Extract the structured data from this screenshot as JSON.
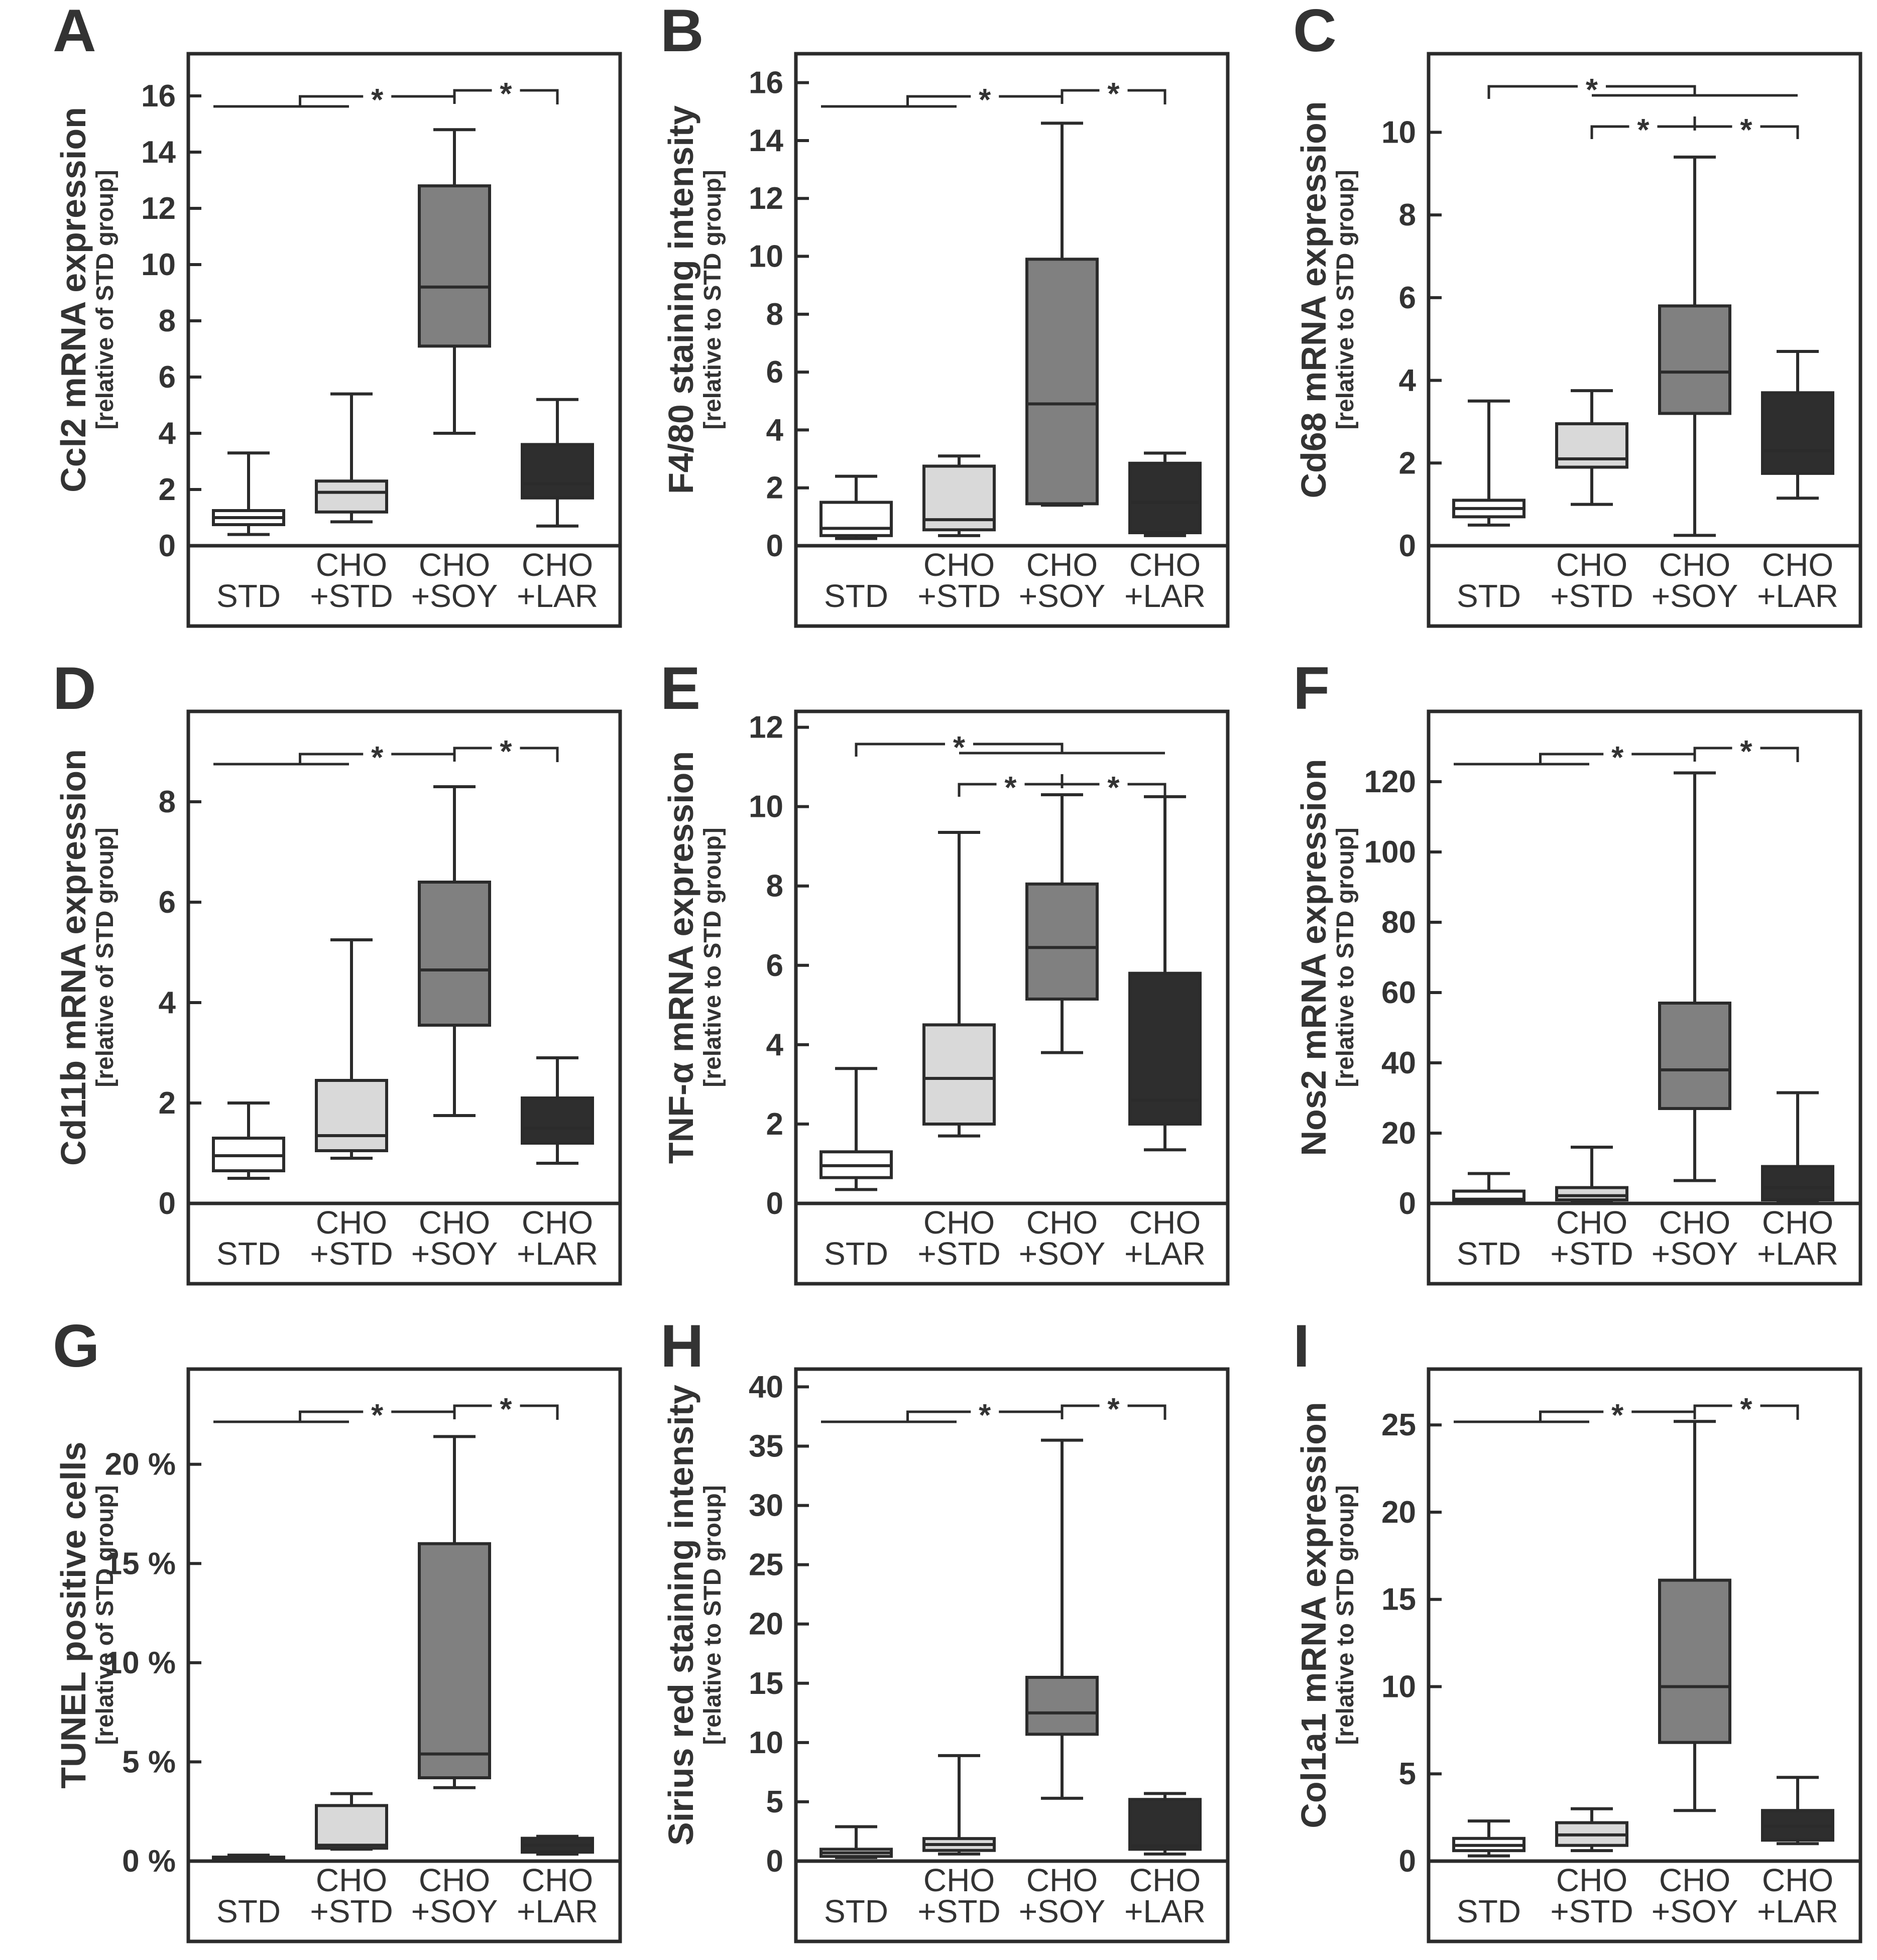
{
  "figure": {
    "colors": {
      "STD": "#ffffff",
      "CHO+STD": "#d9d9d9",
      "CHO+SOY": "#808080",
      "CHO+LAR": "#2e2e2e",
      "stroke": "#2b2b2b"
    }
  },
  "chart_data": [
    {
      "letter": "A",
      "type": "box",
      "ylabel": "Ccl2 mRNA expression",
      "ylabel_sub": "[relative of STD group]",
      "ylim": [
        0,
        17.5
      ],
      "ticks": [
        "0",
        "2",
        "4",
        "6",
        "8",
        "10",
        "12",
        "14",
        "16"
      ],
      "categories": [
        [
          "STD"
        ],
        [
          "CHO",
          "+STD"
        ],
        [
          "CHO",
          "+SOY"
        ],
        [
          "CHO",
          "+LAR"
        ]
      ],
      "boxes": [
        {
          "min": 0.4,
          "q1": 0.75,
          "median": 1.0,
          "q3": 1.25,
          "max": 3.3
        },
        {
          "min": 0.85,
          "q1": 1.2,
          "median": 1.9,
          "q3": 2.3,
          "max": 5.4
        },
        {
          "min": 4.0,
          "q1": 7.1,
          "median": 9.2,
          "q3": 12.8,
          "max": 14.8
        },
        {
          "min": 0.7,
          "q1": 1.7,
          "median": 2.2,
          "q3": 3.6,
          "max": 5.2
        }
      ],
      "significance": "three",
      "sig_marks": [
        "*",
        "*"
      ]
    },
    {
      "letter": "B",
      "type": "box",
      "ylabel": "F4/80 staining intensity",
      "ylabel_sub": "[relative to STD group]",
      "ylim": [
        0,
        17
      ],
      "ticks": [
        "0",
        "2",
        "4",
        "6",
        "8",
        "10",
        "12",
        "14",
        "16"
      ],
      "categories": [
        [
          "STD"
        ],
        [
          "CHO",
          "+STD"
        ],
        [
          "CHO",
          "+SOY"
        ],
        [
          "CHO",
          "+LAR"
        ]
      ],
      "boxes": [
        {
          "min": 0.25,
          "q1": 0.35,
          "median": 0.6,
          "q3": 1.5,
          "max": 2.4
        },
        {
          "min": 0.35,
          "q1": 0.55,
          "median": 0.9,
          "q3": 2.75,
          "max": 3.1
        },
        {
          "min": 1.4,
          "q1": 1.45,
          "median": 4.9,
          "q3": 9.9,
          "max": 14.6
        },
        {
          "min": 0.35,
          "q1": 0.45,
          "median": 1.5,
          "q3": 2.85,
          "max": 3.2
        }
      ],
      "significance": "three",
      "sig_marks": [
        "*",
        "*"
      ]
    },
    {
      "letter": "C",
      "type": "box",
      "ylabel": "Cd68 mRNA expression",
      "ylabel_sub": "[relative to STD group]",
      "ylim": [
        0,
        11.9
      ],
      "ticks": [
        "0",
        "2",
        "4",
        "6",
        "8",
        "10"
      ],
      "categories": [
        [
          "STD"
        ],
        [
          "CHO",
          "+STD"
        ],
        [
          "CHO",
          "+SOY"
        ],
        [
          "CHO",
          "+LAR"
        ]
      ],
      "boxes": [
        {
          "min": 0.5,
          "q1": 0.7,
          "median": 0.9,
          "q3": 1.1,
          "max": 3.5
        },
        {
          "min": 1.0,
          "q1": 1.9,
          "median": 2.1,
          "q3": 2.95,
          "max": 3.75
        },
        {
          "min": 0.25,
          "q1": 3.2,
          "median": 4.2,
          "q3": 5.8,
          "max": 9.4
        },
        {
          "min": 1.15,
          "q1": 1.75,
          "median": 2.3,
          "q3": 3.7,
          "max": 4.7
        }
      ],
      "significance": "two-level",
      "sig_marks": [
        "*",
        "*",
        "*"
      ]
    },
    {
      "letter": "D",
      "type": "box",
      "ylabel": "Cd11b mRNA expression",
      "ylabel_sub": "[relative of STD group]",
      "ylim": [
        0,
        9.8
      ],
      "ticks": [
        "0",
        "2",
        "4",
        "6",
        "8"
      ],
      "categories": [
        [
          "STD"
        ],
        [
          "CHO",
          "+STD"
        ],
        [
          "CHO",
          "+SOY"
        ],
        [
          "CHO",
          "+LAR"
        ]
      ],
      "boxes": [
        {
          "min": 0.5,
          "q1": 0.65,
          "median": 0.95,
          "q3": 1.3,
          "max": 2.0
        },
        {
          "min": 0.9,
          "q1": 1.05,
          "median": 1.35,
          "q3": 2.45,
          "max": 5.25
        },
        {
          "min": 1.75,
          "q1": 3.55,
          "median": 4.65,
          "q3": 6.4,
          "max": 8.3
        },
        {
          "min": 0.8,
          "q1": 1.2,
          "median": 1.5,
          "q3": 2.1,
          "max": 2.9
        }
      ],
      "significance": "three",
      "sig_marks": [
        "*",
        "*"
      ]
    },
    {
      "letter": "E",
      "type": "box",
      "ylabel": "TNF-α mRNA expression",
      "ylabel_sub": "[relative to STD group]",
      "ylim": [
        0,
        12.4
      ],
      "ticks": [
        "0",
        "2",
        "4",
        "6",
        "8",
        "10",
        "12"
      ],
      "categories": [
        [
          "STD"
        ],
        [
          "CHO",
          "+STD"
        ],
        [
          "CHO",
          "+SOY"
        ],
        [
          "CHO",
          "+LAR"
        ]
      ],
      "boxes": [
        {
          "min": 0.35,
          "q1": 0.65,
          "median": 0.95,
          "q3": 1.3,
          "max": 3.4
        },
        {
          "min": 1.7,
          "q1": 2.0,
          "median": 3.15,
          "q3": 4.5,
          "max": 9.35
        },
        {
          "min": 3.8,
          "q1": 5.15,
          "median": 6.45,
          "q3": 8.05,
          "max": 10.3
        },
        {
          "min": 1.35,
          "q1": 2.0,
          "median": 2.6,
          "q3": 5.8,
          "max": 10.25
        }
      ],
      "significance": "two-level",
      "sig_marks": [
        "*",
        "*",
        "*"
      ]
    },
    {
      "letter": "F",
      "type": "box",
      "ylabel": "Nos2 mRNA expression",
      "ylabel_sub": "[relative to STD group]",
      "ylim": [
        0,
        140
      ],
      "ticks": [
        "0",
        "20",
        "40",
        "60",
        "80",
        "100",
        "120"
      ],
      "categories": [
        [
          "STD"
        ],
        [
          "CHO",
          "+STD"
        ],
        [
          "CHO",
          "+SOY"
        ],
        [
          "CHO",
          "+LAR"
        ]
      ],
      "boxes": [
        {
          "min": 0.3,
          "q1": 0.5,
          "median": 1.2,
          "q3": 3.5,
          "max": 8.5
        },
        {
          "min": 0.3,
          "q1": 1.0,
          "median": 2.2,
          "q3": 4.5,
          "max": 16.0
        },
        {
          "min": 6.5,
          "q1": 27.0,
          "median": 38.0,
          "q3": 57.0,
          "max": 122.5
        },
        {
          "min": 0.5,
          "q1": 1.0,
          "median": 4.5,
          "q3": 10.5,
          "max": 31.5
        }
      ],
      "significance": "three",
      "sig_marks": [
        "*",
        "*"
      ]
    },
    {
      "letter": "G",
      "type": "box",
      "ylabel": "TUNEL positive cells",
      "ylabel_sub": "[relative of STD group]",
      "ylim": [
        0,
        24.8
      ],
      "ticks": [
        "0 %",
        "5 %",
        "10 %",
        "15 %",
        "20 %"
      ],
      "categories": [
        [
          "STD"
        ],
        [
          "CHO",
          "+STD"
        ],
        [
          "CHO",
          "+SOY"
        ],
        [
          "CHO",
          "+LAR"
        ]
      ],
      "boxes": [
        {
          "min": 0.05,
          "q1": 0.1,
          "median": 0.15,
          "q3": 0.2,
          "max": 0.3
        },
        {
          "min": 0.6,
          "q1": 0.65,
          "median": 0.8,
          "q3": 2.8,
          "max": 3.4
        },
        {
          "min": 3.7,
          "q1": 4.2,
          "median": 5.4,
          "q3": 16.0,
          "max": 21.4
        },
        {
          "min": 0.35,
          "q1": 0.45,
          "median": 0.8,
          "q3": 1.15,
          "max": 1.25
        }
      ],
      "significance": "three",
      "sig_marks": [
        "*",
        "*"
      ]
    },
    {
      "letter": "H",
      "type": "box",
      "ylabel": "Sirius red staining intensity",
      "ylabel_sub": "[relative to STD group]",
      "ylim": [
        0,
        41.5
      ],
      "ticks": [
        "0",
        "5",
        "10",
        "15",
        "20",
        "25",
        "30",
        "35",
        "40"
      ],
      "categories": [
        [
          "STD"
        ],
        [
          "CHO",
          "+STD"
        ],
        [
          "CHO",
          "+SOY"
        ],
        [
          "CHO",
          "+LAR"
        ]
      ],
      "boxes": [
        {
          "min": 0.3,
          "q1": 0.4,
          "median": 0.7,
          "q3": 1.0,
          "max": 2.9
        },
        {
          "min": 0.6,
          "q1": 0.9,
          "median": 1.4,
          "q3": 1.9,
          "max": 8.9
        },
        {
          "min": 5.3,
          "q1": 10.7,
          "median": 12.5,
          "q3": 15.5,
          "max": 35.5
        },
        {
          "min": 0.6,
          "q1": 1.0,
          "median": 1.3,
          "q3": 5.2,
          "max": 5.7
        }
      ],
      "significance": "three",
      "sig_marks": [
        "*",
        "*"
      ]
    },
    {
      "letter": "I",
      "type": "box",
      "ylabel": "Col1a1 mRNA expression",
      "ylabel_sub": "[relative to STD group]",
      "ylim": [
        0,
        28.2
      ],
      "ticks": [
        "0",
        "5",
        "10",
        "15",
        "20",
        "25"
      ],
      "categories": [
        [
          "STD"
        ],
        [
          "CHO",
          "+STD"
        ],
        [
          "CHO",
          "+SOY"
        ],
        [
          "CHO",
          "+LAR"
        ]
      ],
      "boxes": [
        {
          "min": 0.3,
          "q1": 0.6,
          "median": 0.9,
          "q3": 1.3,
          "max": 2.3
        },
        {
          "min": 0.6,
          "q1": 0.9,
          "median": 1.5,
          "q3": 2.2,
          "max": 3.0
        },
        {
          "min": 2.9,
          "q1": 6.8,
          "median": 10.0,
          "q3": 16.1,
          "max": 25.2
        },
        {
          "min": 1.0,
          "q1": 1.2,
          "median": 2.0,
          "q3": 2.9,
          "max": 4.8
        }
      ],
      "significance": "three",
      "sig_marks": [
        "*",
        "*"
      ]
    }
  ]
}
